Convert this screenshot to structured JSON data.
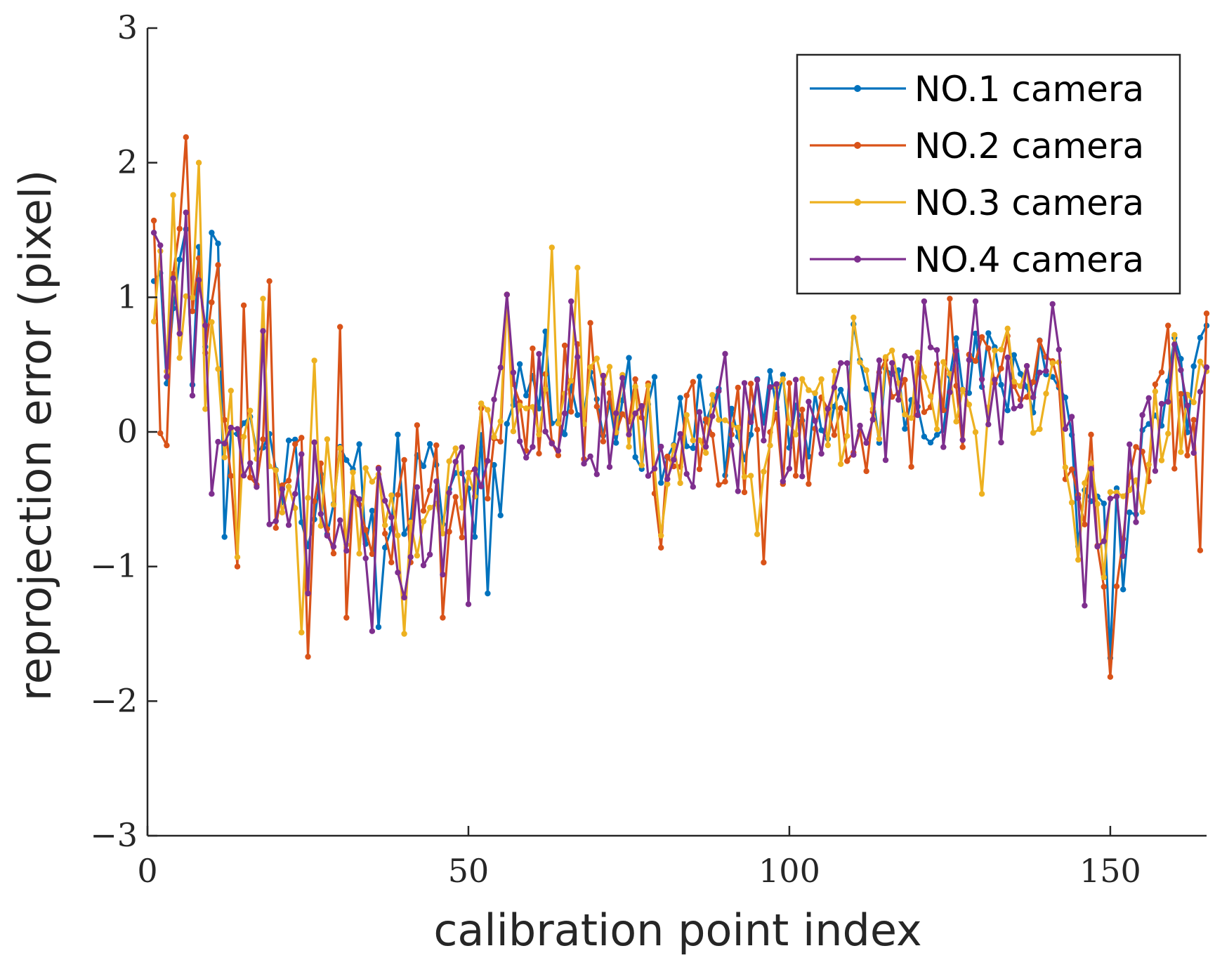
{
  "chart_data": {
    "type": "line",
    "title": "",
    "xlabel": "calibration point index",
    "ylabel": "reprojection error (pixel)",
    "xlim": [
      0,
      165
    ],
    "ylim": [
      -3,
      3
    ],
    "xticks": [
      0,
      50,
      100,
      150
    ],
    "xtick_labels": [
      "0",
      "50",
      "100",
      "150"
    ],
    "yticks": [
      -3,
      -2,
      -1,
      0,
      1,
      2,
      3
    ],
    "ytick_labels": [
      "−3",
      "−2",
      "−1",
      "0",
      "1",
      "2",
      "3"
    ],
    "grid": false,
    "legend_position": "top-right",
    "series": [
      {
        "name": "NO.1 camera",
        "color": "#0072BD",
        "seed": 11,
        "offset": 0.1,
        "noise": 0.4,
        "anchors": [
          [
            1,
            1.12
          ],
          [
            2,
            1.18
          ],
          [
            3,
            0.36
          ],
          [
            5,
            1.28
          ],
          [
            7,
            0.35
          ],
          [
            10,
            1.48
          ],
          [
            11,
            1.4
          ],
          [
            12,
            -0.78
          ],
          [
            13,
            -0.01
          ],
          [
            25,
            -0.85
          ],
          [
            36,
            -1.45
          ],
          [
            39,
            -0.02
          ],
          [
            51,
            -0.78
          ],
          [
            53,
            -1.2
          ],
          [
            55,
            -0.62
          ],
          [
            57,
            0.2
          ],
          [
            75,
            0.55
          ],
          [
            110,
            0.8
          ],
          [
            139,
            0.68
          ],
          [
            145,
            -0.85
          ],
          [
            150,
            -1.68
          ],
          [
            152,
            -1.17
          ],
          [
            160,
            0.7
          ],
          [
            165,
            0.79
          ]
        ]
      },
      {
        "name": "NO.2 camera",
        "color": "#D95319",
        "seed": 23,
        "offset": 0.0,
        "noise": 0.45,
        "anchors": [
          [
            1,
            1.57
          ],
          [
            2,
            -0.01
          ],
          [
            3,
            -0.1
          ],
          [
            5,
            1.51
          ],
          [
            6,
            2.19
          ],
          [
            11,
            1.24
          ],
          [
            14,
            -1.0
          ],
          [
            15,
            0.94
          ],
          [
            19,
            1.12
          ],
          [
            25,
            -1.67
          ],
          [
            30,
            0.78
          ],
          [
            31,
            -1.38
          ],
          [
            42,
            0.05
          ],
          [
            46,
            -1.38
          ],
          [
            56,
            1.02
          ],
          [
            60,
            0.62
          ],
          [
            69,
            0.81
          ],
          [
            80,
            -0.86
          ],
          [
            96,
            -0.97
          ],
          [
            125,
            0.99
          ],
          [
            147,
            -0.02
          ],
          [
            150,
            -1.82
          ],
          [
            159,
            0.79
          ],
          [
            164,
            -0.88
          ],
          [
            165,
            0.88
          ]
        ]
      },
      {
        "name": "NO.3 camera",
        "color": "#EDB120",
        "seed": 37,
        "offset": 0.05,
        "noise": 0.4,
        "anchors": [
          [
            1,
            0.82
          ],
          [
            3,
            0.45
          ],
          [
            4,
            1.76
          ],
          [
            5,
            0.55
          ],
          [
            8,
            2.0
          ],
          [
            9,
            0.17
          ],
          [
            14,
            -0.93
          ],
          [
            18,
            0.99
          ],
          [
            24,
            -1.49
          ],
          [
            26,
            0.53
          ],
          [
            40,
            -1.5
          ],
          [
            56,
            1.02
          ],
          [
            63,
            1.37
          ],
          [
            67,
            1.22
          ],
          [
            80,
            -0.77
          ],
          [
            95,
            -0.76
          ],
          [
            110,
            0.85
          ],
          [
            130,
            -0.46
          ],
          [
            145,
            -0.95
          ],
          [
            151,
            -0.45
          ],
          [
            160,
            0.72
          ],
          [
            165,
            0.45
          ]
        ]
      },
      {
        "name": "NO.4 camera",
        "color": "#7E2F8E",
        "seed": 49,
        "offset": 0.0,
        "noise": 0.45,
        "anchors": [
          [
            1,
            1.48
          ],
          [
            3,
            0.41
          ],
          [
            6,
            1.63
          ],
          [
            7,
            0.27
          ],
          [
            10,
            -0.46
          ],
          [
            18,
            0.75
          ],
          [
            23,
            -0.46
          ],
          [
            25,
            -1.2
          ],
          [
            35,
            -1.48
          ],
          [
            40,
            -1.23
          ],
          [
            46,
            -1.06
          ],
          [
            50,
            -1.28
          ],
          [
            56,
            1.02
          ],
          [
            66,
            0.97
          ],
          [
            90,
            0.58
          ],
          [
            121,
            0.97
          ],
          [
            129,
            0.97
          ],
          [
            141,
            0.95
          ],
          [
            146,
            -1.29
          ],
          [
            151,
            -0.48
          ],
          [
            160,
            0.65
          ],
          [
            165,
            0.48
          ]
        ]
      }
    ]
  }
}
